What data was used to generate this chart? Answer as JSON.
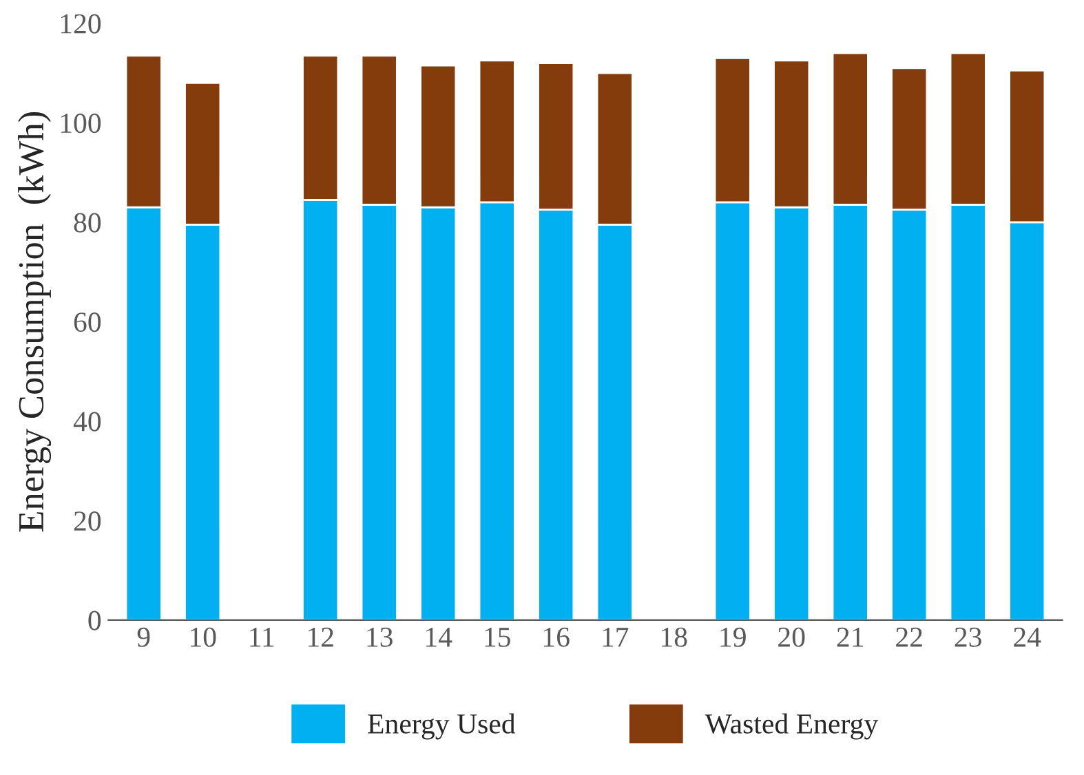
{
  "chart_data": {
    "type": "bar",
    "stacked": true,
    "ylabel": "Energy Consumption  (kWh)",
    "categories": [
      "9",
      "10",
      "11",
      "12",
      "13",
      "14",
      "15",
      "16",
      "17",
      "18",
      "19",
      "20",
      "21",
      "22",
      "23",
      "24"
    ],
    "series": [
      {
        "name": "Energy Used",
        "color": "#00b0f0",
        "values": [
          83,
          79.5,
          null,
          84.5,
          83.5,
          83,
          84,
          82.5,
          79.5,
          null,
          84,
          83,
          83.5,
          82.5,
          83.5,
          80
        ]
      },
      {
        "name": "Wasted Energy",
        "color": "#843c0c",
        "values": [
          30.5,
          28.5,
          null,
          29,
          30,
          28.5,
          28.5,
          29.5,
          30.5,
          null,
          29,
          29.5,
          30.5,
          28.5,
          30.5,
          30.5
        ]
      }
    ],
    "ylim": [
      0,
      120
    ],
    "yticks": [
      0,
      20,
      40,
      60,
      80,
      100,
      120
    ],
    "grid": false,
    "legend": "bottom"
  }
}
